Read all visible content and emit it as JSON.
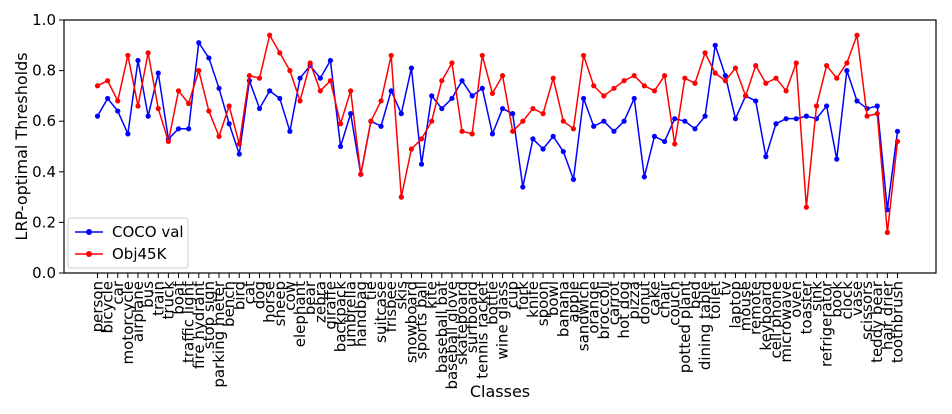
{
  "chart_data": {
    "type": "line",
    "title": "",
    "xlabel": "Classes",
    "ylabel": "LRP-optimal Thresholds",
    "ylim": [
      0.0,
      1.0
    ],
    "yticks": [
      "0.0",
      "0.2",
      "0.4",
      "0.6",
      "0.8",
      "1.0"
    ],
    "grid": false,
    "legend_position": "lower-left",
    "categories": [
      "person",
      "bicycle",
      "car",
      "motorcycle",
      "airplane",
      "bus",
      "train",
      "truck",
      "boat",
      "traffic light",
      "fire hydrant",
      "stop sign",
      "parking meter",
      "bench",
      "bird",
      "cat",
      "dog",
      "horse",
      "sheep",
      "cow",
      "elephant",
      "bear",
      "zebra",
      "giraffe",
      "backpack",
      "umbrella",
      "handbag",
      "tie",
      "suitcase",
      "frisbee",
      "skis",
      "snowboard",
      "sports ball",
      "kite",
      "baseball bat",
      "baseball glove",
      "skateboard",
      "surfboard",
      "tennis racket",
      "bottle",
      "wine glass",
      "cup",
      "fork",
      "knife",
      "spoon",
      "bowl",
      "banana",
      "apple",
      "sandwich",
      "orange",
      "broccoli",
      "carrot",
      "hot dog",
      "pizza",
      "donut",
      "cake",
      "chair",
      "couch",
      "potted plant",
      "bed",
      "dining table",
      "toilet",
      "tv",
      "laptop",
      "mouse",
      "remote",
      "keyboard",
      "cell phone",
      "microwave",
      "oven",
      "toaster",
      "sink",
      "refrigerator",
      "book",
      "clock",
      "vase",
      "scissors",
      "teddy bear",
      "hair drier",
      "toothbrush"
    ],
    "series": [
      {
        "name": "COCO val",
        "color": "#0000ff",
        "values": [
          0.62,
          0.69,
          0.64,
          0.55,
          0.84,
          0.62,
          0.79,
          0.53,
          0.57,
          0.57,
          0.91,
          0.85,
          0.73,
          0.59,
          0.47,
          0.76,
          0.65,
          0.72,
          0.69,
          0.56,
          0.77,
          0.82,
          0.77,
          0.84,
          0.5,
          0.63,
          0.39,
          0.6,
          0.58,
          0.72,
          0.63,
          0.81,
          0.43,
          0.7,
          0.65,
          0.69,
          0.76,
          0.7,
          0.73,
          0.55,
          0.65,
          0.63,
          0.34,
          0.53,
          0.49,
          0.54,
          0.48,
          0.37,
          0.69,
          0.58,
          0.6,
          0.56,
          0.6,
          0.69,
          0.38,
          0.54,
          0.52,
          0.61,
          0.6,
          0.57,
          0.62,
          0.9,
          0.78,
          0.61,
          0.7,
          0.68,
          0.46,
          0.59,
          0.61,
          0.61,
          0.62,
          0.61,
          0.66,
          0.45,
          0.8,
          0.68,
          0.65,
          0.66,
          0.25,
          0.56
        ]
      },
      {
        "name": "Obj45K",
        "color": "#ff0000",
        "values": [
          0.74,
          0.76,
          0.68,
          0.86,
          0.66,
          0.87,
          0.65,
          0.52,
          0.72,
          0.67,
          0.8,
          0.64,
          0.54,
          0.66,
          0.51,
          0.78,
          0.77,
          0.94,
          0.87,
          0.8,
          0.68,
          0.83,
          0.72,
          0.76,
          0.59,
          0.72,
          0.39,
          0.6,
          0.68,
          0.86,
          0.3,
          0.49,
          0.53,
          0.6,
          0.76,
          0.83,
          0.56,
          0.55,
          0.86,
          0.71,
          0.78,
          0.56,
          0.6,
          0.65,
          0.63,
          0.77,
          0.6,
          0.57,
          0.86,
          0.74,
          0.7,
          0.73,
          0.76,
          0.78,
          0.74,
          0.72,
          0.78,
          0.51,
          0.77,
          0.75,
          0.87,
          0.79,
          0.76,
          0.81,
          0.7,
          0.82,
          0.75,
          0.77,
          0.72,
          0.83,
          0.26,
          0.66,
          0.82,
          0.77,
          0.83,
          0.94,
          0.62,
          0.63,
          0.16,
          0.52
        ]
      }
    ]
  }
}
